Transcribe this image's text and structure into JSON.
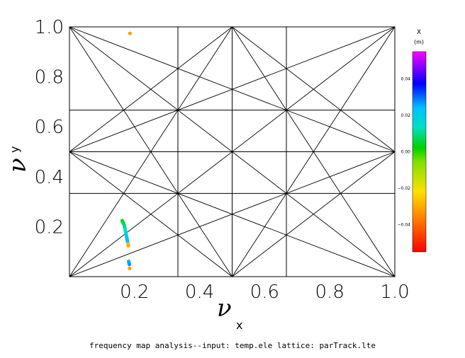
{
  "chart_data": {
    "type": "scatter",
    "title": "",
    "xlabel": {
      "symbol": "ν",
      "sub": "x"
    },
    "ylabel": {
      "symbol": "ν",
      "sub": "y"
    },
    "xlim": [
      0,
      1
    ],
    "ylim": [
      0,
      1
    ],
    "xticks": [
      "0.2",
      "0.4",
      "0.6",
      "0.8",
      "1.0"
    ],
    "yticks": [
      "0.2",
      "0.4",
      "0.6",
      "0.8",
      "1.0"
    ],
    "grid": false,
    "resonance_lines": {
      "vertical": [
        0.3333,
        0.5,
        0.6667
      ],
      "horizontal": [
        0.3333,
        0.5,
        0.6667
      ],
      "segments": [
        [
          [
            0,
            0
          ],
          [
            1,
            1
          ]
        ],
        [
          [
            0,
            1
          ],
          [
            1,
            0
          ]
        ],
        [
          [
            0,
            0
          ],
          [
            1,
            0.5
          ]
        ],
        [
          [
            0,
            0
          ],
          [
            0.5,
            1
          ]
        ],
        [
          [
            1,
            0
          ],
          [
            0,
            0.5
          ]
        ],
        [
          [
            1,
            0
          ],
          [
            0.5,
            1
          ]
        ],
        [
          [
            0,
            1
          ],
          [
            1,
            0.5
          ]
        ],
        [
          [
            0,
            1
          ],
          [
            0.5,
            0
          ]
        ],
        [
          [
            1,
            1
          ],
          [
            0,
            0.5
          ]
        ],
        [
          [
            1,
            1
          ],
          [
            0.5,
            0
          ]
        ],
        [
          [
            0,
            0.5
          ],
          [
            0.5,
            1
          ]
        ],
        [
          [
            0.5,
            1
          ],
          [
            1,
            0.5
          ]
        ],
        [
          [
            1,
            0.5
          ],
          [
            0.5,
            0
          ]
        ],
        [
          [
            0.5,
            0
          ],
          [
            0,
            0.5
          ]
        ]
      ]
    },
    "points": [
      {
        "x": 0.186,
        "y": 0.974,
        "c": -0.032
      },
      {
        "x": 0.162,
        "y": 0.224,
        "c": 0.004
      },
      {
        "x": 0.164,
        "y": 0.219,
        "c": 0.005
      },
      {
        "x": 0.166,
        "y": 0.213,
        "c": 0.006
      },
      {
        "x": 0.168,
        "y": 0.207,
        "c": 0.008
      },
      {
        "x": 0.169,
        "y": 0.201,
        "c": 0.009
      },
      {
        "x": 0.17,
        "y": 0.195,
        "c": 0.011
      },
      {
        "x": 0.171,
        "y": 0.189,
        "c": 0.013
      },
      {
        "x": 0.172,
        "y": 0.183,
        "c": 0.014
      },
      {
        "x": 0.173,
        "y": 0.177,
        "c": 0.016
      },
      {
        "x": 0.174,
        "y": 0.17,
        "c": 0.017
      },
      {
        "x": 0.175,
        "y": 0.163,
        "c": 0.019
      },
      {
        "x": 0.176,
        "y": 0.157,
        "c": 0.021
      },
      {
        "x": 0.177,
        "y": 0.15,
        "c": 0.023
      },
      {
        "x": 0.178,
        "y": 0.144,
        "c": 0.024
      },
      {
        "x": 0.179,
        "y": 0.137,
        "c": 0.022
      },
      {
        "x": 0.18,
        "y": 0.131,
        "c": -0.028
      },
      {
        "x": 0.181,
        "y": 0.124,
        "c": -0.031
      },
      {
        "x": 0.182,
        "y": 0.061,
        "c": 0.025
      },
      {
        "x": 0.183,
        "y": 0.055,
        "c": 0.026
      },
      {
        "x": 0.184,
        "y": 0.049,
        "c": 0.027
      },
      {
        "x": 0.185,
        "y": 0.033,
        "c": -0.032
      }
    ],
    "colorbar": {
      "title": "X",
      "unit": "(m)",
      "min": -0.055,
      "max": 0.055,
      "ticks": [
        "0.04",
        "0.02",
        "0.00",
        "−0.02",
        "−0.04"
      ],
      "tick_values": [
        0.04,
        0.02,
        0.0,
        -0.02,
        -0.04
      ]
    }
  },
  "footer": "frequency map analysis--input: temp.ele   lattice: parTrack.lte"
}
